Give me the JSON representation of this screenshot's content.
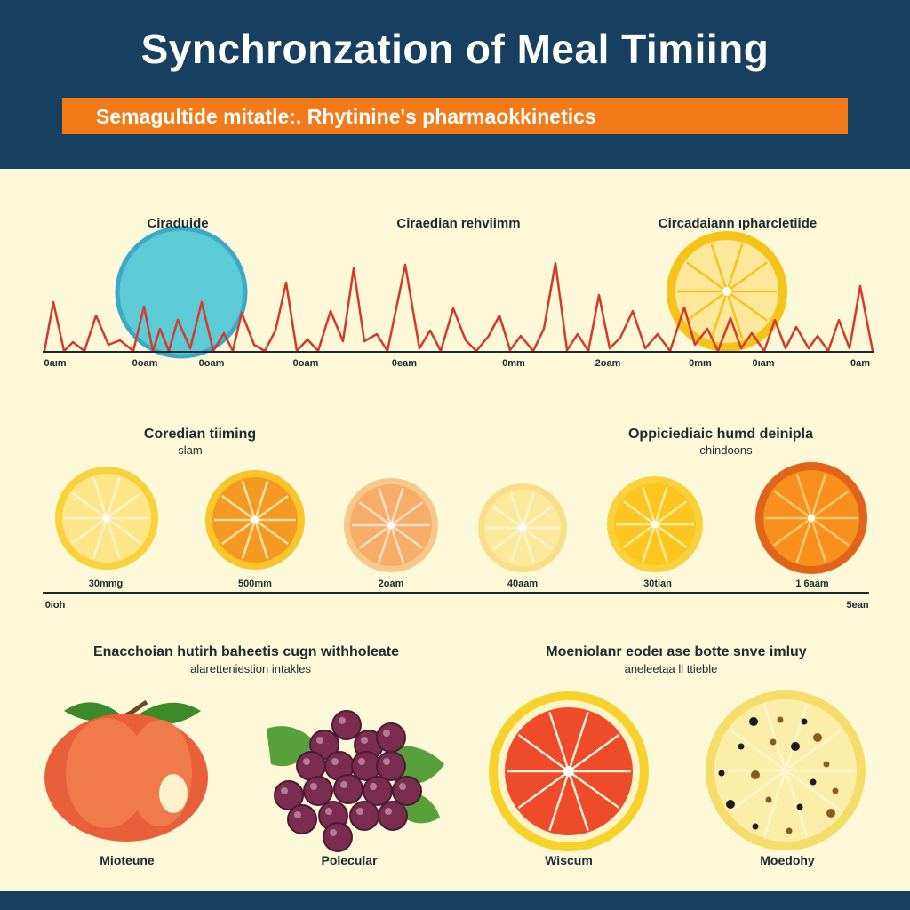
{
  "header": {
    "title": "Synchronzation of Meal Timiing",
    "subtitle": "Semagultide mitatle:. Rhytinine's pharmaokkinetics"
  },
  "rhythm_section": {
    "labels": [
      "Ciraduide",
      "Ciraedian rehviimm",
      "Circadaiann ıpharcletiide"
    ],
    "ticks": [
      "0aım",
      "0oam",
      "0oam",
      "0oam",
      "0eam",
      "0mm",
      "2oam",
      "0mm",
      "0ıam",
      "0am"
    ]
  },
  "timing_section": {
    "left_title": "Coredian tiiming",
    "left_sub": "slam",
    "right_title": "Oppiciediaic humd deinipla",
    "right_sub": "chindoons",
    "slice_labels": [
      "30mmg",
      "500mm",
      "2oam",
      "40aam",
      "30tian",
      "1 6aam"
    ],
    "axis_left": "0ioh",
    "axis_right": "5ean"
  },
  "foods_section": {
    "left_title": "Enacchoian hutirh baheetis cugn withholeate",
    "left_sub": "alaretteniestion intakles",
    "right_title": "Moeniolanr eodeı ase botte snve imluy",
    "right_sub": "aneleetaa ll ttieble",
    "food_labels": [
      "Mioteune",
      "Polecular",
      "Wiscum",
      "Moedohy"
    ]
  },
  "colors": {
    "header_bg": "#173f5f",
    "banner": "#f27a18",
    "background": "#fcf8d8",
    "rhythm_line": "#d33a2c",
    "lemon": "#f7cf2f",
    "orange": "#f39a24",
    "blood_orange": "#ee4b2b",
    "grape": "#7a2d4f"
  },
  "icons": {
    "blue_circle": "pill-circle-icon",
    "lemon_slice": "lemon-slice-icon",
    "orange_slice": "orange-slice-icon",
    "peach": "peach-icon",
    "grapes": "grapes-icon",
    "grapefruit": "grapefruit-slice-icon",
    "seeded_slice": "seeded-slice-icon"
  }
}
